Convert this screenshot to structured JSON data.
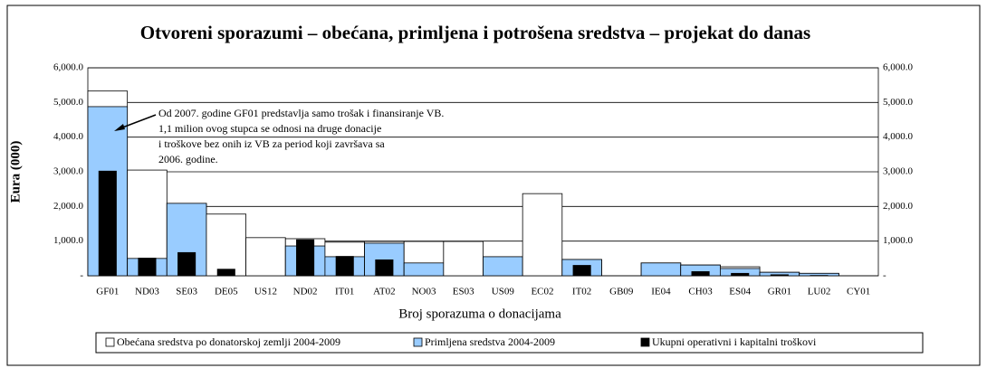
{
  "chart_data": {
    "type": "bar",
    "title": "Otvoreni sporazumi – obećana, primljena i potrošena sredstva – projekat do danas",
    "y_label": "Eura (000)",
    "x_label": "Broj sporazuma o donacijama",
    "annotation": [
      "Od 2007. godine GF01 predstavlja samo trošak i finansiranje VB.",
      "1,1 milion ovog stupca se odnosi na druge donacije",
      "i troškove  bez onih iz VB za period koji završava sa",
      "2006. godine."
    ],
    "categories": [
      "GF01",
      "ND03",
      "SE03",
      "DE05",
      "US12",
      "ND02",
      "IT01",
      "AT02",
      "NO03",
      "ES03",
      "US09",
      "EC02",
      "IT02",
      "GB09",
      "IE04",
      "CH03",
      "ES04",
      "GR01",
      "LU02",
      "CY01"
    ],
    "series": [
      {
        "name": "Obećana sredstva po donatorskoj zemlji 2004-2009",
        "color": "#ffffff",
        "values": [
          5330,
          3050,
          2090,
          1780,
          1100,
          1070,
          970,
          990,
          990,
          990,
          550,
          2370,
          470,
          0,
          370,
          310,
          260,
          100,
          70,
          0
        ]
      },
      {
        "name": "Primljena sredstva 2004-2009",
        "color": "#99ccff",
        "values": [
          4880,
          500,
          2090,
          0,
          0,
          860,
          550,
          940,
          370,
          0,
          550,
          0,
          470,
          0,
          370,
          310,
          210,
          100,
          70,
          0
        ]
      },
      {
        "name": "Ukupni operativni i  kapitalni troškovi",
        "color": "#000000",
        "values": [
          3030,
          520,
          680,
          200,
          0,
          1050,
          570,
          470,
          0,
          0,
          0,
          0,
          310,
          0,
          0,
          130,
          80,
          40,
          20,
          0
        ]
      }
    ],
    "ylim": [
      0,
      6000
    ],
    "yticks": [
      {
        "value": 0,
        "label": "-"
      },
      {
        "value": 1000,
        "label": "1,000.0"
      },
      {
        "value": 2000,
        "label": "2,000.0"
      },
      {
        "value": 3000,
        "label": "3,000.0"
      },
      {
        "value": 4000,
        "label": "4,000.0"
      },
      {
        "value": 5000,
        "label": "5,000.0"
      },
      {
        "value": 6000,
        "label": "6,000.0"
      }
    ],
    "grid": true
  }
}
